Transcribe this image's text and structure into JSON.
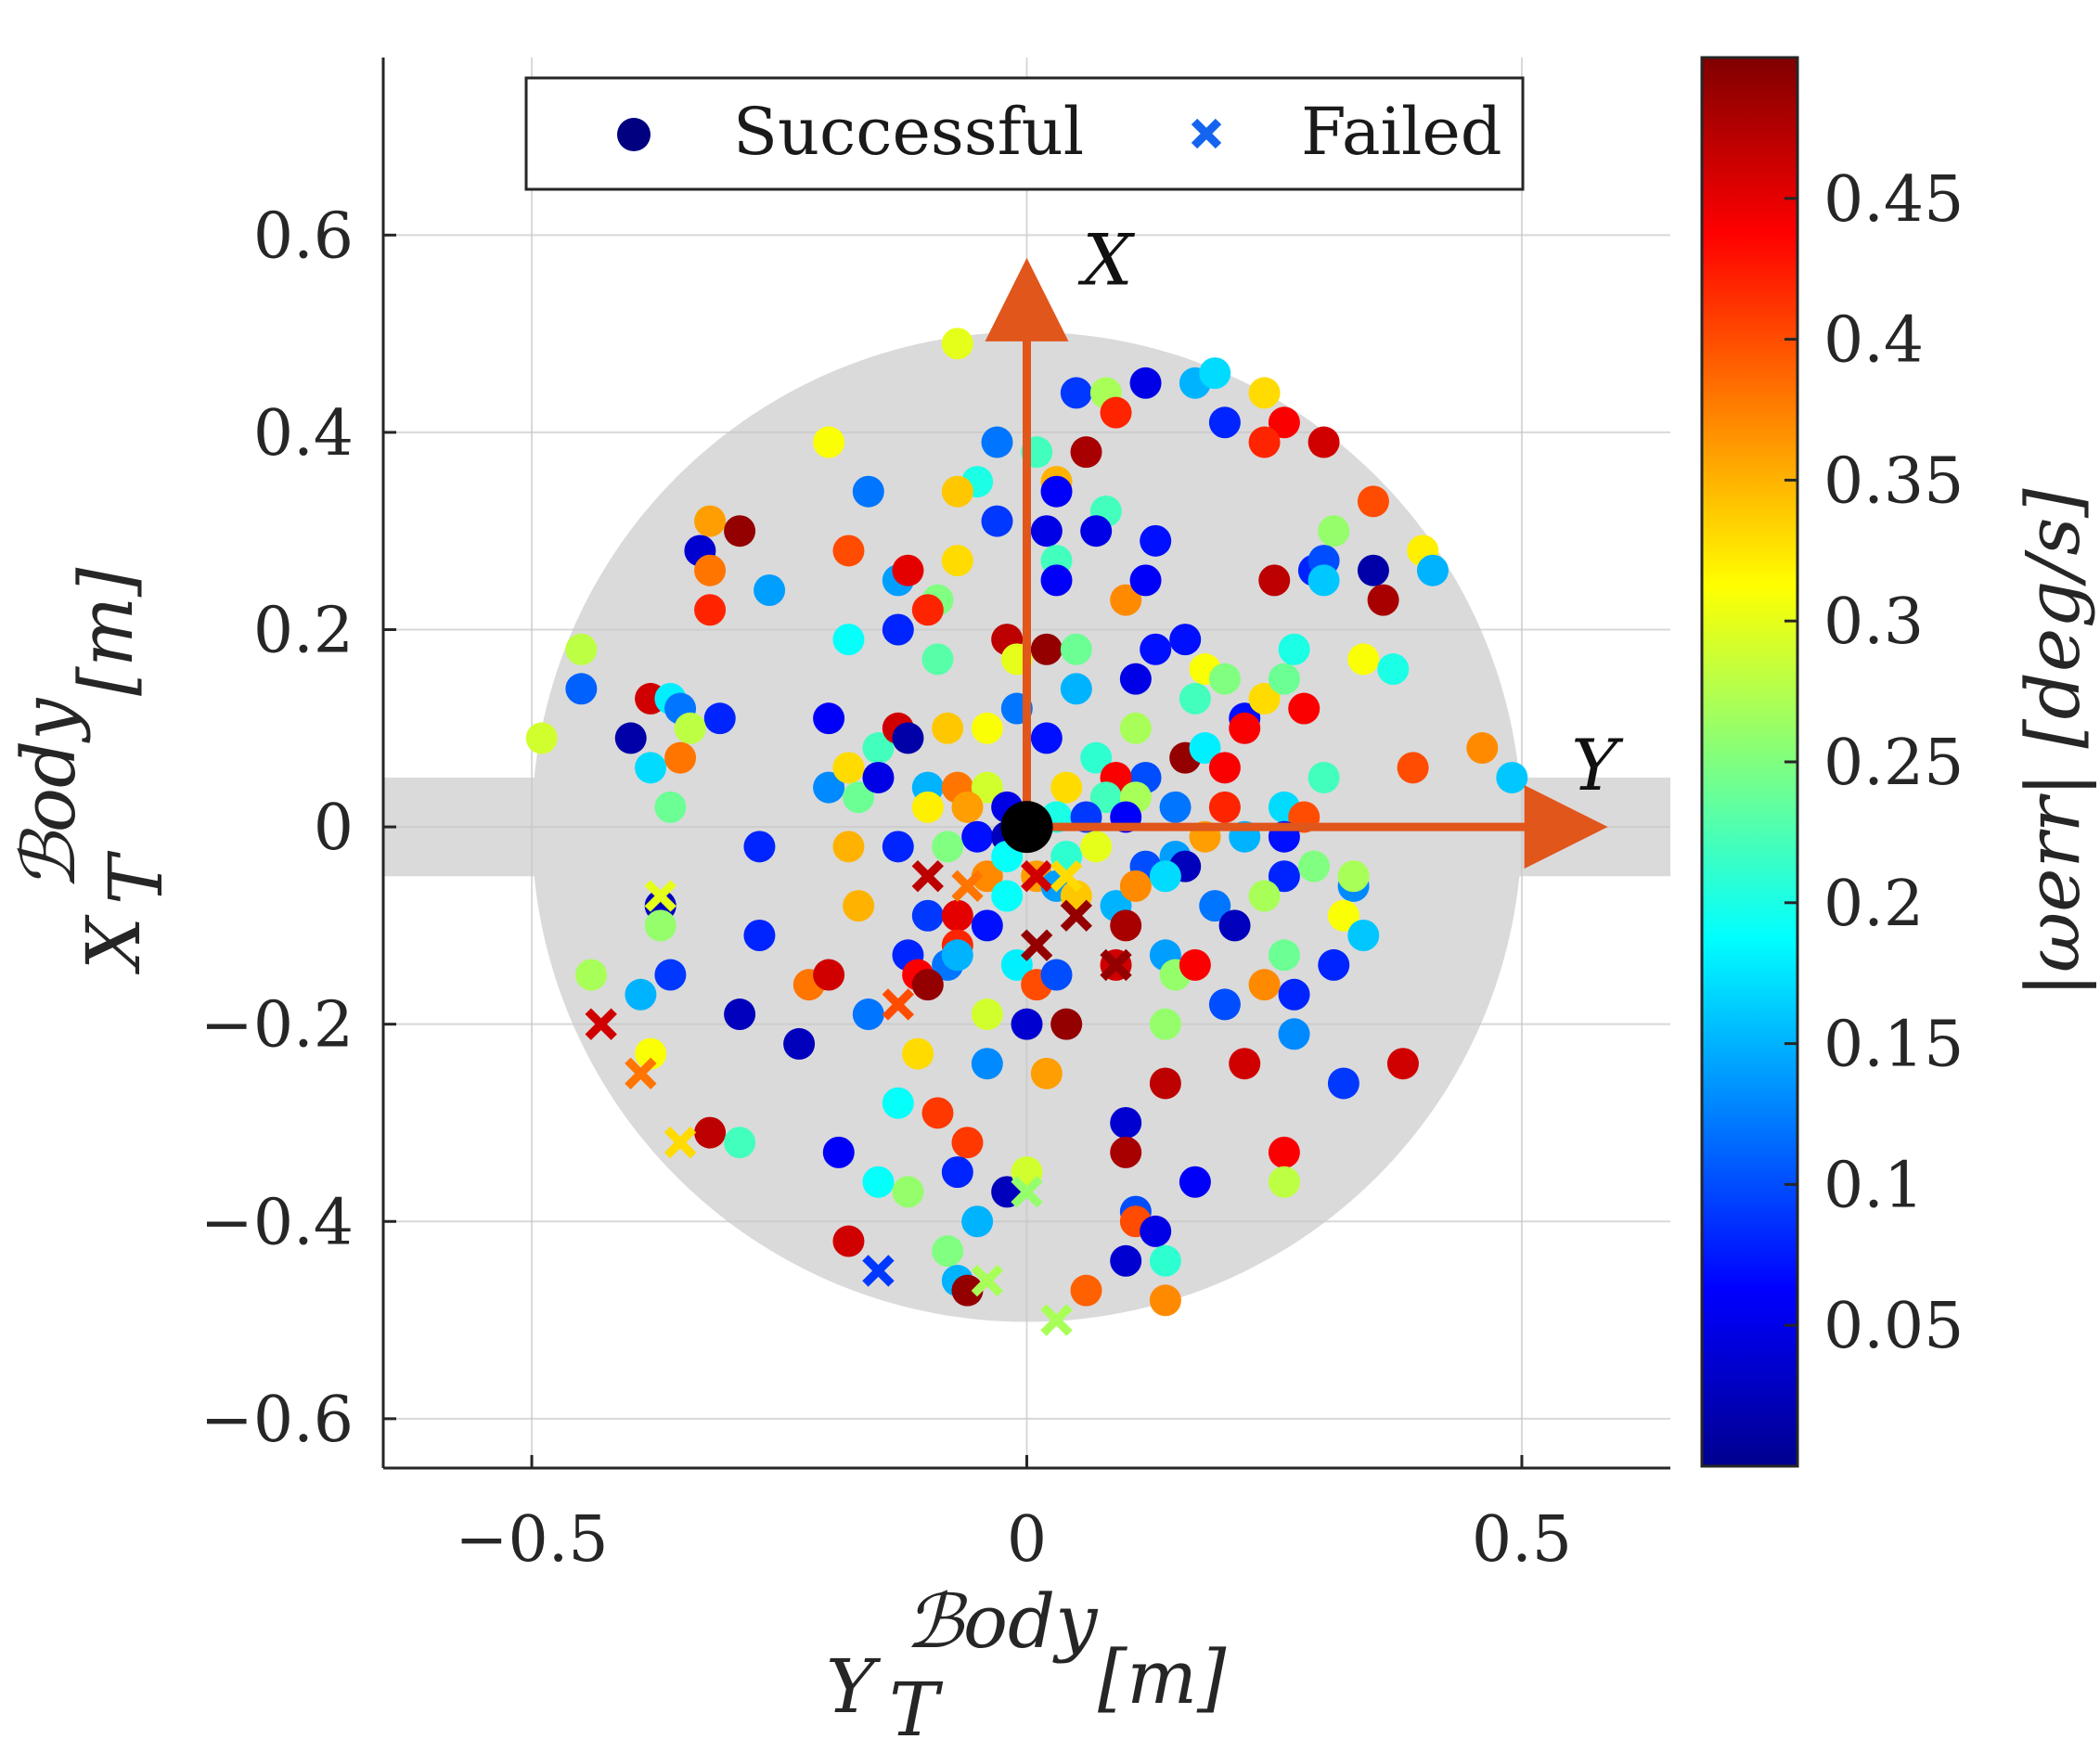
{
  "chart_data": {
    "type": "scatter",
    "xlabel": {
      "main": "Y",
      "sub": "T",
      "sup": "ℬody",
      "unit": "[m]"
    },
    "ylabel": {
      "main": "X",
      "sub": "T",
      "sup": "ℬody",
      "unit": "[m]"
    },
    "xlim": [
      -0.65,
      0.65
    ],
    "ylim": [
      -0.65,
      0.78
    ],
    "xticks": [
      -0.5,
      0,
      0.5
    ],
    "xtick_labels": [
      "−0.5",
      "0",
      "0.5"
    ],
    "yticks": [
      -0.6,
      -0.4,
      -0.2,
      0,
      0.2,
      0.4,
      0.6
    ],
    "ytick_labels": [
      "−0.6",
      "−0.4",
      "−0.2",
      "0",
      "0.2",
      "0.4",
      "0.6"
    ],
    "grid": true,
    "workspace": {
      "circle_radius": 0.5,
      "band_half_width": 0.05
    },
    "body_frame": {
      "x_arrow_label": "X",
      "y_arrow_label": "Y",
      "arrow_color": "#e0561b"
    },
    "colorbar": {
      "label": "|ωerr| [deg/s]",
      "colormap": "jet",
      "range": [
        0,
        0.5
      ],
      "ticks": [
        0.05,
        0.1,
        0.15,
        0.2,
        0.25,
        0.3,
        0.35,
        0.4,
        0.45
      ],
      "tick_labels": [
        "0.05",
        "0.1",
        "0.15",
        "0.2",
        "0.25",
        "0.3",
        "0.35",
        "0.4",
        "0.45"
      ]
    },
    "legend": {
      "position": "top",
      "entries": [
        {
          "label": "Successful",
          "marker": "circle",
          "color": "#000080"
        },
        {
          "label": "Failed",
          "marker": "x",
          "color": "#1464f0"
        }
      ]
    },
    "successful": [
      [
        -0.07,
        0.49,
        0.3
      ],
      [
        -0.2,
        0.39,
        0.31
      ],
      [
        -0.03,
        0.39,
        0.12
      ],
      [
        0.01,
        0.38,
        0.22
      ],
      [
        0.05,
        0.44,
        0.09
      ],
      [
        0.08,
        0.44,
        0.27
      ],
      [
        0.09,
        0.42,
        0.42
      ],
      [
        0.12,
        0.45,
        0.05
      ],
      [
        0.17,
        0.45,
        0.15
      ],
      [
        0.19,
        0.46,
        0.17
      ],
      [
        0.24,
        0.44,
        0.33
      ],
      [
        0.2,
        0.41,
        0.08
      ],
      [
        0.26,
        0.41,
        0.44
      ],
      [
        0.24,
        0.39,
        0.42
      ],
      [
        0.3,
        0.39,
        0.46
      ],
      [
        0.06,
        0.38,
        0.48
      ],
      [
        -0.05,
        0.35,
        0.2
      ],
      [
        -0.07,
        0.34,
        0.34
      ],
      [
        0.03,
        0.35,
        0.35
      ],
      [
        0.03,
        0.34,
        0.06
      ],
      [
        -0.16,
        0.34,
        0.12
      ],
      [
        0.08,
        0.32,
        0.22
      ],
      [
        0.31,
        0.3,
        0.26
      ],
      [
        0.35,
        0.33,
        0.4
      ],
      [
        -0.32,
        0.31,
        0.36
      ],
      [
        -0.29,
        0.3,
        0.49
      ],
      [
        -0.33,
        0.28,
        0.04
      ],
      [
        -0.32,
        0.26,
        0.38
      ],
      [
        -0.26,
        0.24,
        0.14
      ],
      [
        -0.18,
        0.28,
        0.4
      ],
      [
        -0.03,
        0.31,
        0.09
      ],
      [
        0.02,
        0.3,
        0.05
      ],
      [
        0.07,
        0.3,
        0.05
      ],
      [
        0.13,
        0.29,
        0.07
      ],
      [
        0.03,
        0.27,
        0.22
      ],
      [
        -0.07,
        0.27,
        0.33
      ],
      [
        -0.13,
        0.25,
        0.14
      ],
      [
        -0.12,
        0.26,
        0.45
      ],
      [
        -0.09,
        0.23,
        0.25
      ],
      [
        0.03,
        0.25,
        0.06
      ],
      [
        0.1,
        0.23,
        0.37
      ],
      [
        0.12,
        0.25,
        0.06
      ],
      [
        0.25,
        0.25,
        0.47
      ],
      [
        0.29,
        0.26,
        0.08
      ],
      [
        0.3,
        0.27,
        0.1
      ],
      [
        0.3,
        0.25,
        0.16
      ],
      [
        0.35,
        0.26,
        0.02
      ],
      [
        0.36,
        0.23,
        0.48
      ],
      [
        0.4,
        0.28,
        0.32
      ],
      [
        0.41,
        0.26,
        0.15
      ],
      [
        -0.32,
        0.22,
        0.42
      ],
      [
        -0.18,
        0.19,
        0.19
      ],
      [
        -0.13,
        0.2,
        0.08
      ],
      [
        -0.1,
        0.22,
        0.42
      ],
      [
        -0.09,
        0.17,
        0.23
      ],
      [
        -0.02,
        0.19,
        0.47
      ],
      [
        -0.01,
        0.17,
        0.3
      ],
      [
        0.02,
        0.18,
        0.49
      ],
      [
        0.05,
        0.18,
        0.24
      ],
      [
        0.11,
        0.15,
        0.05
      ],
      [
        0.13,
        0.18,
        0.07
      ],
      [
        0.16,
        0.19,
        0.07
      ],
      [
        0.18,
        0.16,
        0.31
      ],
      [
        0.2,
        0.15,
        0.25
      ],
      [
        0.22,
        0.11,
        0.07
      ],
      [
        0.24,
        0.13,
        0.33
      ],
      [
        0.26,
        0.15,
        0.24
      ],
      [
        0.27,
        0.18,
        0.2
      ],
      [
        0.28,
        0.12,
        0.44
      ],
      [
        0.34,
        0.17,
        0.31
      ],
      [
        0.37,
        0.16,
        0.2
      ],
      [
        0.17,
        0.13,
        0.22
      ],
      [
        -0.45,
        0.18,
        0.28
      ],
      [
        -0.45,
        0.14,
        0.11
      ],
      [
        -0.49,
        0.09,
        0.29
      ],
      [
        -0.38,
        0.13,
        0.46
      ],
      [
        -0.36,
        0.13,
        0.18
      ],
      [
        -0.35,
        0.12,
        0.12
      ],
      [
        -0.31,
        0.11,
        0.08
      ],
      [
        -0.34,
        0.1,
        0.28
      ],
      [
        -0.4,
        0.09,
        0.02
      ],
      [
        -0.38,
        0.06,
        0.17
      ],
      [
        -0.35,
        0.07,
        0.38
      ],
      [
        -0.36,
        0.02,
        0.24
      ],
      [
        -0.27,
        -0.02,
        0.08
      ],
      [
        -0.2,
        0.11,
        0.06
      ],
      [
        -0.15,
        0.08,
        0.22
      ],
      [
        -0.13,
        0.1,
        0.46
      ],
      [
        -0.12,
        0.09,
        0.02
      ],
      [
        -0.08,
        0.1,
        0.34
      ],
      [
        -0.04,
        0.1,
        0.31
      ],
      [
        -0.01,
        0.12,
        0.12
      ],
      [
        0.02,
        0.09,
        0.07
      ],
      [
        0.05,
        0.14,
        0.15
      ],
      [
        0.07,
        0.07,
        0.21
      ],
      [
        0.11,
        0.1,
        0.27
      ],
      [
        0.12,
        0.05,
        0.1
      ],
      [
        0.09,
        0.05,
        0.44
      ],
      [
        0.16,
        0.07,
        0.49
      ],
      [
        0.18,
        0.08,
        0.18
      ],
      [
        0.2,
        0.06,
        0.44
      ],
      [
        0.22,
        0.1,
        0.44
      ],
      [
        0.26,
        0.02,
        0.17
      ],
      [
        0.28,
        0.01,
        0.4
      ],
      [
        0.3,
        0.05,
        0.22
      ],
      [
        0.39,
        0.06,
        0.4
      ],
      [
        0.46,
        0.08,
        0.37
      ],
      [
        0.49,
        0.05,
        0.16
      ],
      [
        -0.2,
        0.04,
        0.13
      ],
      [
        -0.18,
        0.06,
        0.33
      ],
      [
        -0.17,
        0.03,
        0.24
      ],
      [
        -0.15,
        0.05,
        0.05
      ],
      [
        -0.1,
        0.04,
        0.15
      ],
      [
        -0.07,
        0.04,
        0.38
      ],
      [
        -0.04,
        0.04,
        0.29
      ],
      [
        -0.02,
        0.02,
        0.05
      ],
      [
        0.04,
        0.04,
        0.33
      ],
      [
        0.08,
        0.03,
        0.22
      ],
      [
        0.11,
        0.03,
        0.27
      ],
      [
        0.15,
        0.02,
        0.12
      ],
      [
        0.2,
        0.02,
        0.42
      ],
      [
        0.22,
        -0.01,
        0.15
      ],
      [
        -0.1,
        0.02,
        0.32
      ],
      [
        -0.06,
        0.02,
        0.36
      ],
      [
        -0.05,
        -0.01,
        0.07
      ],
      [
        -0.02,
        -0.01,
        0.03
      ],
      [
        0.03,
        0.01,
        0.2
      ],
      [
        0.06,
        0.01,
        0.09
      ],
      [
        0.1,
        0.01,
        0.06
      ],
      [
        -0.18,
        -0.02,
        0.35
      ],
      [
        -0.13,
        -0.02,
        0.08
      ],
      [
        -0.08,
        -0.02,
        0.25
      ],
      [
        -0.04,
        -0.05,
        0.37
      ],
      [
        -0.02,
        -0.03,
        0.19
      ],
      [
        0.01,
        -0.05,
        0.36
      ],
      [
        0.04,
        -0.03,
        0.21
      ],
      [
        0.07,
        -0.02,
        0.3
      ],
      [
        0.12,
        -0.04,
        0.1
      ],
      [
        0.15,
        -0.03,
        0.14
      ],
      [
        0.16,
        -0.04,
        0.03
      ],
      [
        0.18,
        -0.01,
        0.36
      ],
      [
        0.26,
        -0.01,
        0.07
      ],
      [
        0.26,
        -0.05,
        0.08
      ],
      [
        0.29,
        -0.04,
        0.25
      ],
      [
        0.33,
        -0.06,
        0.13
      ],
      [
        0.33,
        -0.05,
        0.27
      ],
      [
        -0.37,
        -0.08,
        0.03
      ],
      [
        -0.37,
        -0.1,
        0.26
      ],
      [
        -0.17,
        -0.08,
        0.35
      ],
      [
        -0.1,
        -0.09,
        0.09
      ],
      [
        -0.07,
        -0.09,
        0.45
      ],
      [
        -0.04,
        -0.1,
        0.07
      ],
      [
        -0.02,
        -0.07,
        0.19
      ],
      [
        0.03,
        -0.06,
        0.14
      ],
      [
        0.05,
        -0.07,
        0.34
      ],
      [
        0.09,
        -0.08,
        0.15
      ],
      [
        0.1,
        -0.1,
        0.48
      ],
      [
        0.11,
        -0.06,
        0.37
      ],
      [
        0.14,
        -0.05,
        0.17
      ],
      [
        0.19,
        -0.08,
        0.12
      ],
      [
        0.21,
        -0.1,
        0.03
      ],
      [
        0.24,
        -0.07,
        0.27
      ],
      [
        0.32,
        -0.09,
        0.31
      ],
      [
        0.34,
        -0.11,
        0.16
      ],
      [
        -0.27,
        -0.11,
        0.08
      ],
      [
        -0.12,
        -0.13,
        0.08
      ],
      [
        -0.11,
        -0.15,
        0.44
      ],
      [
        -0.08,
        -0.14,
        0.12
      ],
      [
        -0.07,
        -0.12,
        0.42
      ],
      [
        -0.01,
        -0.14,
        0.18
      ],
      [
        0.01,
        -0.16,
        0.4
      ],
      [
        0.03,
        -0.15,
        0.1
      ],
      [
        0.09,
        -0.14,
        0.46
      ],
      [
        0.14,
        -0.13,
        0.14
      ],
      [
        0.15,
        -0.15,
        0.26
      ],
      [
        0.17,
        -0.14,
        0.44
      ],
      [
        0.2,
        -0.18,
        0.1
      ],
      [
        0.24,
        -0.16,
        0.37
      ],
      [
        0.26,
        -0.13,
        0.24
      ],
      [
        0.27,
        -0.17,
        0.08
      ],
      [
        0.31,
        -0.14,
        0.08
      ],
      [
        -0.44,
        -0.15,
        0.27
      ],
      [
        -0.39,
        -0.17,
        0.15
      ],
      [
        -0.36,
        -0.15,
        0.09
      ],
      [
        -0.29,
        -0.19,
        0.03
      ],
      [
        -0.22,
        -0.16,
        0.38
      ],
      [
        -0.2,
        -0.15,
        0.46
      ],
      [
        -0.16,
        -0.19,
        0.12
      ],
      [
        -0.1,
        -0.16,
        0.49
      ],
      [
        -0.07,
        -0.13,
        0.15
      ],
      [
        -0.04,
        -0.19,
        0.29
      ],
      [
        0.0,
        -0.2,
        0.04
      ],
      [
        0.04,
        -0.2,
        0.49
      ],
      [
        0.14,
        -0.2,
        0.26
      ],
      [
        0.22,
        -0.24,
        0.46
      ],
      [
        0.27,
        -0.21,
        0.13
      ],
      [
        0.32,
        -0.26,
        0.09
      ],
      [
        0.38,
        -0.24,
        0.46
      ],
      [
        -0.38,
        -0.23,
        0.31
      ],
      [
        -0.23,
        -0.22,
        0.03
      ],
      [
        -0.11,
        -0.23,
        0.33
      ],
      [
        -0.04,
        -0.24,
        0.13
      ],
      [
        0.02,
        -0.25,
        0.36
      ],
      [
        0.14,
        -0.26,
        0.47
      ],
      [
        -0.32,
        -0.31,
        0.47
      ],
      [
        -0.29,
        -0.32,
        0.22
      ],
      [
        -0.13,
        -0.28,
        0.19
      ],
      [
        -0.09,
        -0.29,
        0.41
      ],
      [
        -0.06,
        -0.32,
        0.41
      ],
      [
        0.1,
        -0.3,
        0.04
      ],
      [
        0.1,
        -0.33,
        0.48
      ],
      [
        -0.19,
        -0.33,
        0.06
      ],
      [
        -0.15,
        -0.36,
        0.19
      ],
      [
        -0.12,
        -0.37,
        0.26
      ],
      [
        -0.07,
        -0.35,
        0.08
      ],
      [
        -0.02,
        -0.37,
        0.03
      ],
      [
        0.0,
        -0.35,
        0.29
      ],
      [
        0.17,
        -0.36,
        0.06
      ],
      [
        0.26,
        -0.33,
        0.44
      ],
      [
        0.26,
        -0.36,
        0.28
      ],
      [
        -0.18,
        -0.42,
        0.46
      ],
      [
        -0.05,
        -0.4,
        0.15
      ],
      [
        0.11,
        -0.39,
        0.1
      ],
      [
        0.11,
        -0.4,
        0.4
      ],
      [
        0.13,
        -0.41,
        0.05
      ],
      [
        -0.08,
        -0.43,
        0.25
      ],
      [
        0.1,
        -0.44,
        0.04
      ],
      [
        0.14,
        -0.44,
        0.21
      ],
      [
        -0.07,
        -0.46,
        0.15
      ],
      [
        -0.06,
        -0.47,
        0.49
      ],
      [
        0.06,
        -0.47,
        0.39
      ],
      [
        0.14,
        -0.48,
        0.37
      ]
    ],
    "failed": [
      [
        -0.1,
        -0.05,
        0.47
      ],
      [
        -0.06,
        -0.06,
        0.38
      ],
      [
        0.01,
        -0.05,
        0.46
      ],
      [
        0.04,
        -0.05,
        0.33
      ],
      [
        0.05,
        -0.09,
        0.49
      ],
      [
        0.01,
        -0.12,
        0.49
      ],
      [
        0.09,
        -0.14,
        0.49
      ],
      [
        -0.37,
        -0.07,
        0.3
      ],
      [
        -0.43,
        -0.2,
        0.46
      ],
      [
        -0.39,
        -0.25,
        0.38
      ],
      [
        -0.35,
        -0.32,
        0.33
      ],
      [
        -0.13,
        -0.18,
        0.4
      ],
      [
        0.0,
        -0.37,
        0.26
      ],
      [
        -0.15,
        -0.45,
        0.09
      ],
      [
        -0.04,
        -0.46,
        0.27
      ],
      [
        0.03,
        -0.5,
        0.27
      ]
    ]
  }
}
